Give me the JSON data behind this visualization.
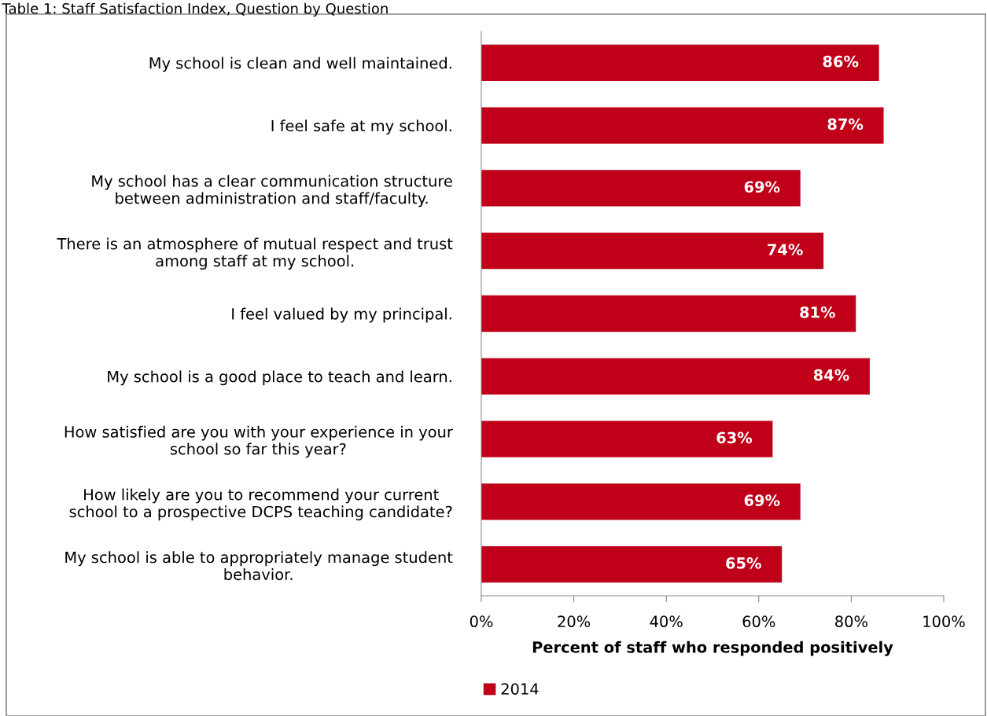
{
  "chart_data": {
    "type": "bar",
    "orientation": "horizontal",
    "title": "Table 1: Staff Satisfaction Index, Question by Question",
    "xlabel": "Percent of staff who responded positively",
    "categories": [
      "My school is clean and well maintained.",
      "I feel safe at my school.",
      "My school has a clear communication structure\nbetween administration and staff/faculty.",
      "There is an atmosphere of mutual respect and trust\namong staff at my school.",
      "I feel valued by my principal.",
      "My school is a good place to teach and learn.",
      "How satisfied are you with your experience in your\nschool so far this year?",
      "How likely are you to recommend your current\nschool to a prospective DCPS teaching candidate?",
      "My school is able to appropriately manage student\nbehavior."
    ],
    "series": [
      {
        "name": "2014",
        "color": "#c00018",
        "values": [
          86,
          87,
          69,
          74,
          81,
          84,
          63,
          69,
          65
        ],
        "value_labels": [
          "86%",
          "87%",
          "69%",
          "74%",
          "81%",
          "84%",
          "63%",
          "69%",
          "65%"
        ]
      }
    ],
    "xlim": [
      0,
      100
    ],
    "xticks": [
      {
        "value": 0,
        "label": "0%"
      },
      {
        "value": 20,
        "label": "20%"
      },
      {
        "value": 40,
        "label": "40%"
      },
      {
        "value": 60,
        "label": "60%"
      },
      {
        "value": 80,
        "label": "80%"
      },
      {
        "value": 100,
        "label": "100%"
      }
    ],
    "grid": false,
    "legend": "bottom left"
  }
}
